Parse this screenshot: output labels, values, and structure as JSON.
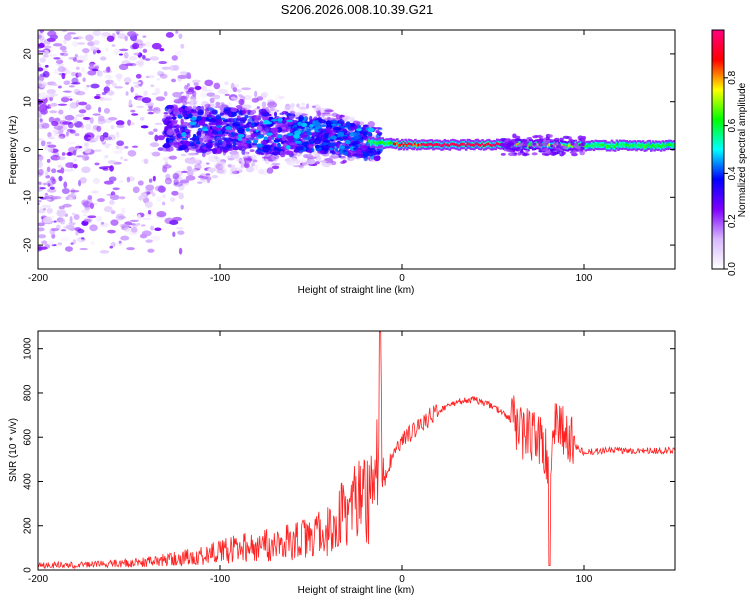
{
  "chart_data": [
    {
      "type": "heatmap",
      "title": "S206.2026.008.10.39.G21",
      "xlabel": "Height of straight line (km)",
      "ylabel": "Frequency (Hz)",
      "xlim": [
        -200,
        150
      ],
      "ylim": [
        -25,
        25
      ],
      "x_ticks": [
        -200,
        -100,
        0,
        100
      ],
      "y_ticks": [
        -20,
        -10,
        0,
        10,
        20
      ],
      "colorbar": {
        "label": "Normalized spectral amplitude",
        "range": [
          0,
          1
        ],
        "ticks": [
          0.0,
          0.2,
          0.4,
          0.6,
          0.8
        ],
        "colors": [
          "#ffffff",
          "#d8b8ff",
          "#7f00ff",
          "#0000ff",
          "#00ffff",
          "#00ff00",
          "#ffff00",
          "#ff0000",
          "#ff0080"
        ]
      },
      "ridge": {
        "description_free_line": [
          {
            "x": -130,
            "f": 4.5
          },
          {
            "x": -100,
            "f": 4.0
          },
          {
            "x": -70,
            "f": 3.5
          },
          {
            "x": -50,
            "f": 3.0
          },
          {
            "x": -30,
            "f": 2.0
          },
          {
            "x": -15,
            "f": 1.5
          },
          {
            "x": 0,
            "f": 1.0
          },
          {
            "x": 50,
            "f": 1.0
          },
          {
            "x": 100,
            "f": 0.8
          },
          {
            "x": 150,
            "f": 0.8
          }
        ]
      }
    },
    {
      "type": "line",
      "xlabel": "Height of straight line (km)",
      "ylabel": "SNR (10 * v/v)",
      "xlim": [
        -200,
        150
      ],
      "ylim": [
        0,
        1080
      ],
      "x_ticks": [
        -200,
        -100,
        0,
        100
      ],
      "y_ticks": [
        0,
        200,
        400,
        600,
        800,
        1000
      ],
      "color": "#ff2020",
      "series": [
        {
          "name": "SNR",
          "x": [
            -200,
            -180,
            -160,
            -140,
            -120,
            -100,
            -90,
            -80,
            -70,
            -60,
            -50,
            -40,
            -35,
            -30,
            -25,
            -20,
            -15,
            -12,
            -10,
            -5,
            0,
            5,
            10,
            20,
            30,
            40,
            50,
            60,
            65,
            70,
            75,
            80,
            85,
            90,
            95,
            100,
            110,
            120,
            130,
            140,
            150
          ],
          "y": [
            25,
            25,
            30,
            40,
            60,
            90,
            110,
            120,
            130,
            140,
            160,
            200,
            250,
            300,
            330,
            350,
            380,
            1075,
            400,
            520,
            580,
            620,
            660,
            720,
            760,
            770,
            740,
            680,
            640,
            600,
            620,
            480,
            650,
            600,
            560,
            530,
            540,
            540,
            540,
            540,
            540
          ]
        }
      ]
    }
  ]
}
